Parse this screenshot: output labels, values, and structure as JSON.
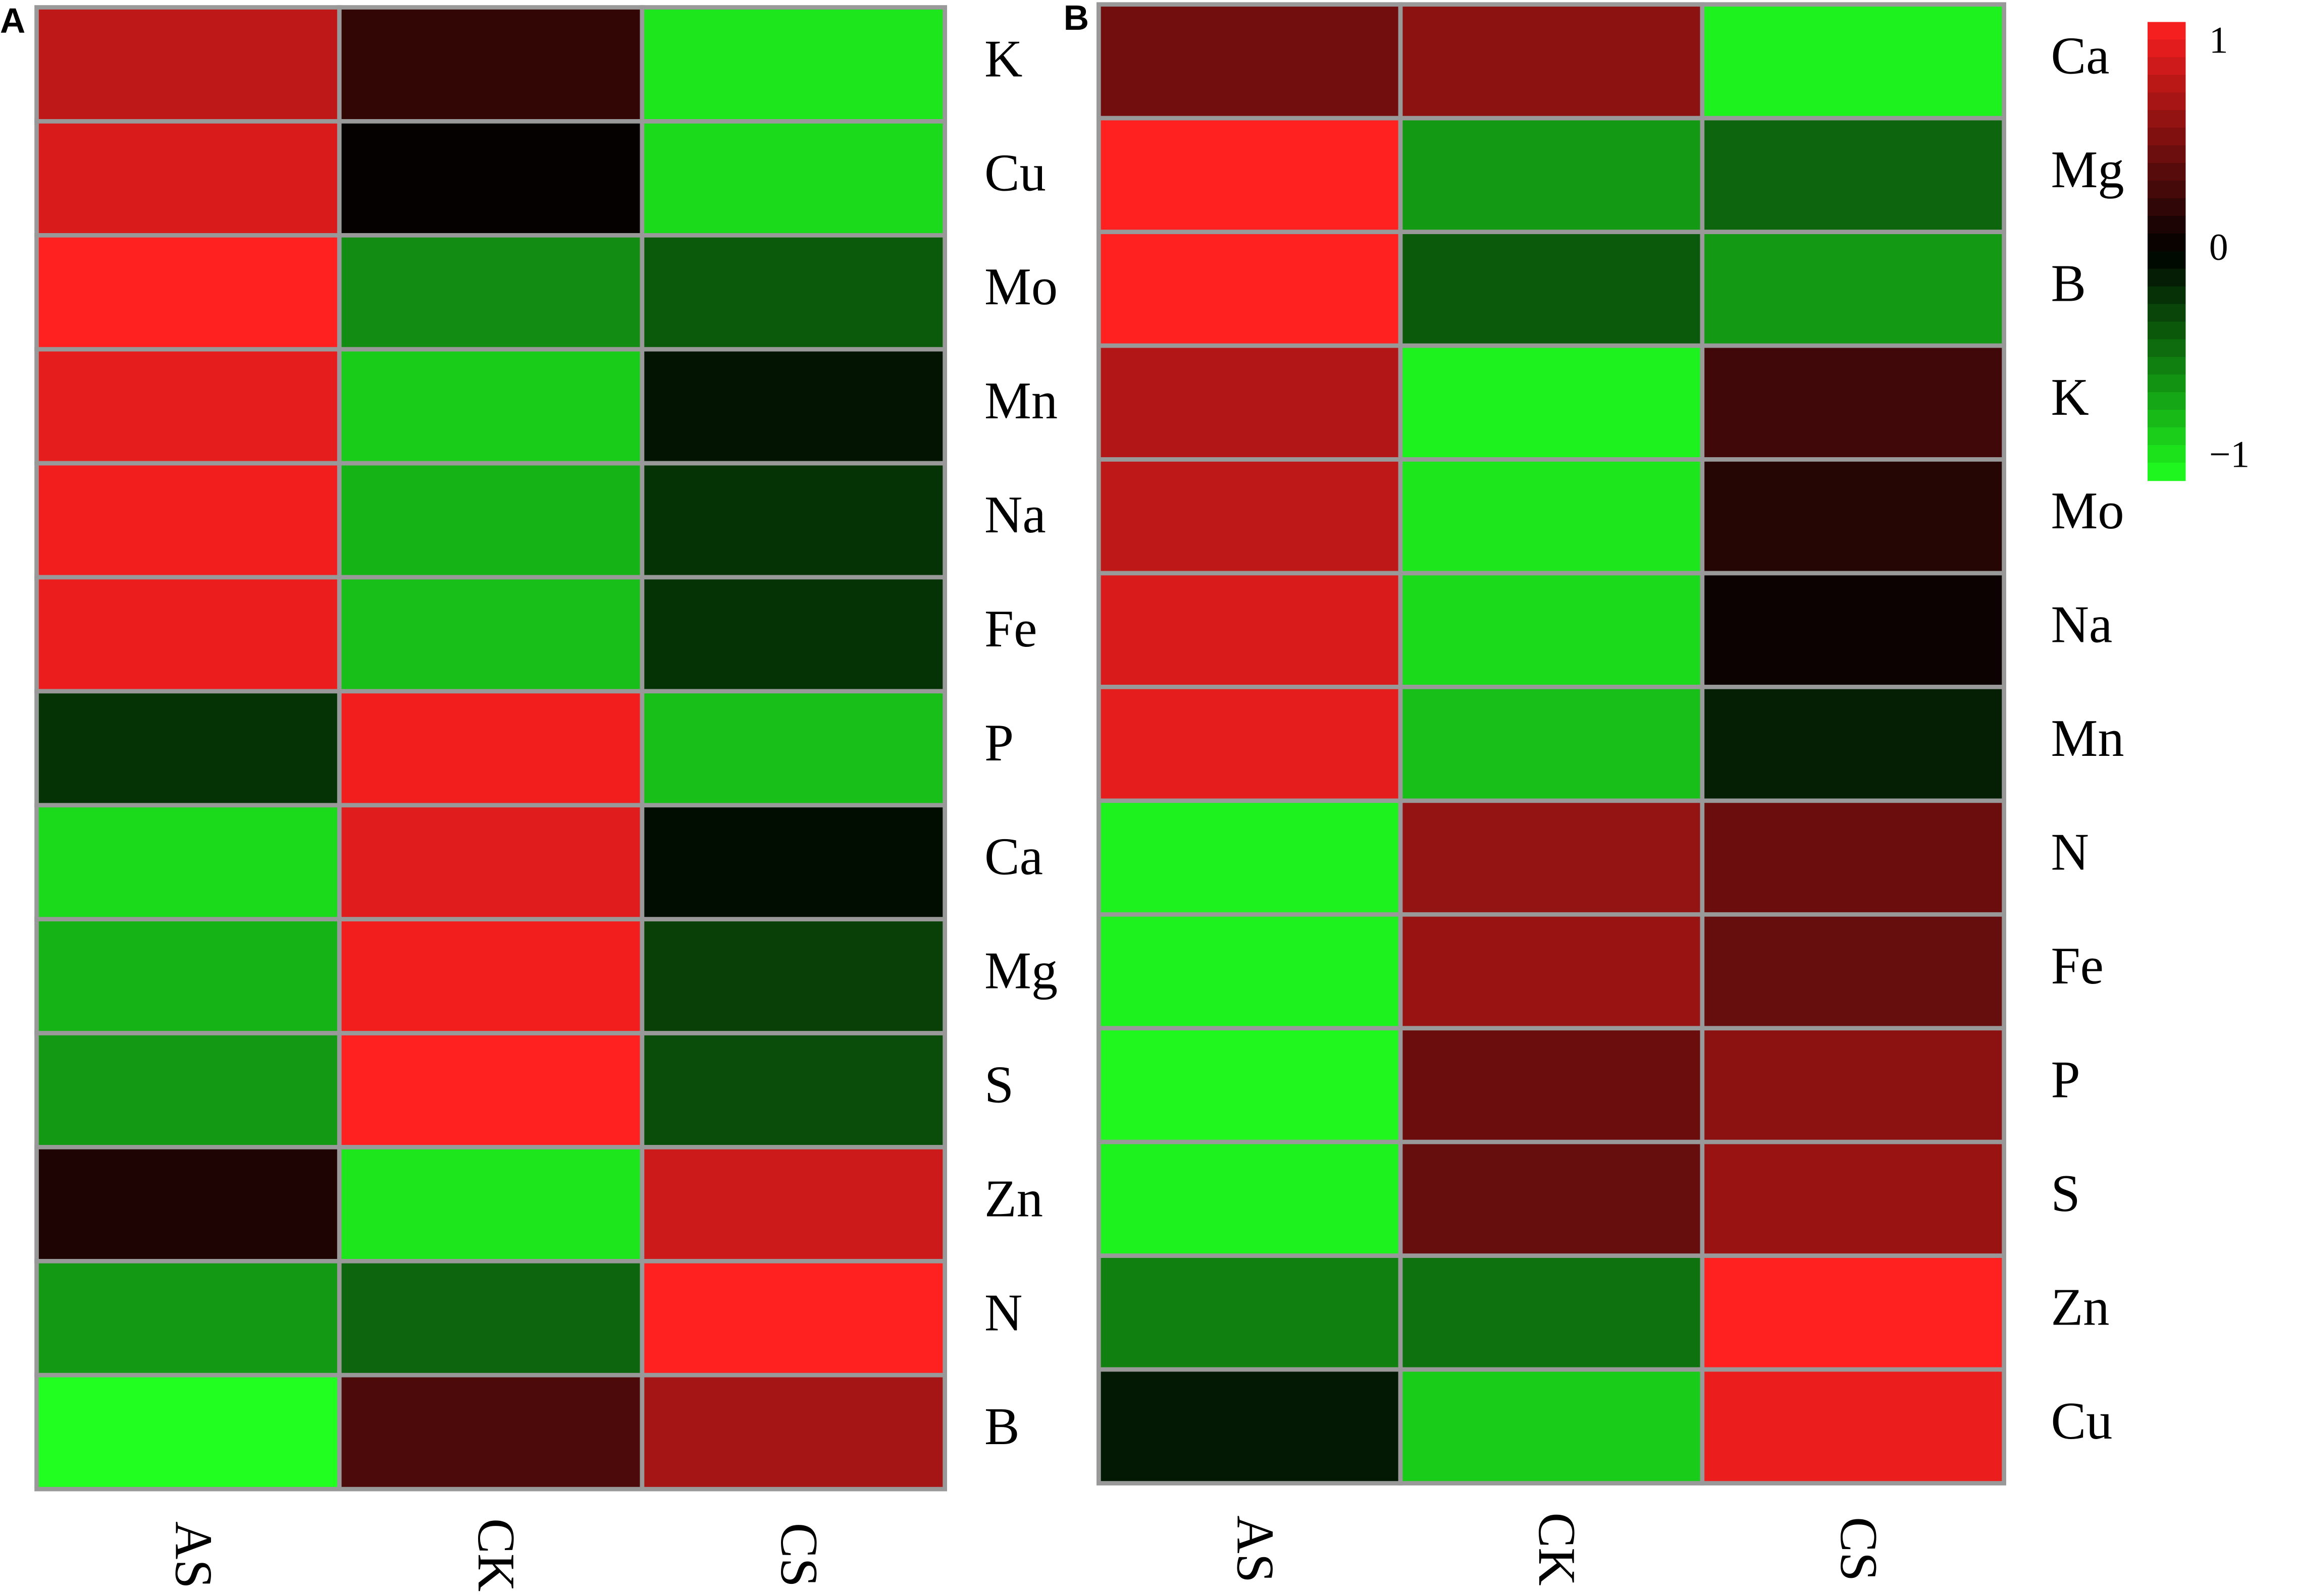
{
  "chart_data": [
    {
      "type": "heatmap",
      "panel_label": "A",
      "x": [
        "AS",
        "CK",
        "CS"
      ],
      "y": [
        "K",
        "Cu",
        "Mo",
        "Mn",
        "Na",
        "Fe",
        "P",
        "Ca",
        "Mg",
        "S",
        "Zn",
        "N",
        "B"
      ],
      "values": [
        [
          0.75,
          0.2,
          -0.9
        ],
        [
          0.85,
          0.02,
          -0.85
        ],
        [
          1.0,
          -0.55,
          -0.35
        ],
        [
          0.9,
          -0.8,
          -0.08
        ],
        [
          0.95,
          -0.7,
          -0.2
        ],
        [
          0.92,
          -0.75,
          -0.2
        ],
        [
          -0.2,
          0.95,
          -0.75
        ],
        [
          -0.85,
          0.88,
          -0.05
        ],
        [
          -0.7,
          0.95,
          -0.25
        ],
        [
          -0.6,
          1.0,
          -0.3
        ],
        [
          0.12,
          -0.9,
          0.8
        ],
        [
          -0.6,
          -0.4,
          1.0
        ],
        [
          -1.0,
          0.3,
          0.65
        ]
      ],
      "colors": {
        "low": "#20ff20",
        "mid": "#000000",
        "high": "#ff2020"
      },
      "zlim": [
        -1,
        1
      ]
    },
    {
      "type": "heatmap",
      "panel_label": "B",
      "x": [
        "AS",
        "CK",
        "CS"
      ],
      "y": [
        "Ca",
        "Mg",
        "B",
        "K",
        "Mo",
        "Na",
        "Mn",
        "N",
        "Fe",
        "P",
        "S",
        "Zn",
        "Cu"
      ],
      "values": [
        [
          0.45,
          0.55,
          -0.95
        ],
        [
          1.0,
          -0.6,
          -0.4
        ],
        [
          1.0,
          -0.35,
          -0.6
        ],
        [
          0.7,
          -0.95,
          0.25
        ],
        [
          0.75,
          -0.9,
          0.15
        ],
        [
          0.85,
          -0.85,
          0.05
        ],
        [
          0.9,
          -0.75,
          -0.12
        ],
        [
          -0.95,
          0.58,
          0.42
        ],
        [
          -0.95,
          0.6,
          0.4
        ],
        [
          -0.97,
          0.42,
          0.55
        ],
        [
          -0.95,
          0.4,
          0.6
        ],
        [
          -0.5,
          -0.45,
          1.0
        ],
        [
          -0.1,
          -0.8,
          0.92
        ]
      ],
      "colors": {
        "low": "#20ff20",
        "mid": "#000000",
        "high": "#ff2020"
      },
      "zlim": [
        -1,
        1
      ],
      "colorbar_ticks": [
        1,
        0,
        {
          "value": -1,
          "label": "−1"
        }
      ]
    }
  ]
}
